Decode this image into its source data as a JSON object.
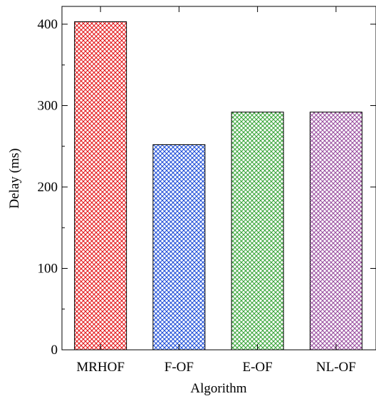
{
  "chart_data": {
    "type": "bar",
    "categories": [
      "MRHOF",
      "F-OF",
      "E-OF",
      "NL-OF"
    ],
    "values": [
      403,
      252,
      292,
      292
    ],
    "title": "",
    "xlabel": "Algorithm",
    "ylabel": "Delay (ms)",
    "ylim": [
      0,
      400
    ],
    "yticks": [
      0,
      100,
      200,
      300,
      400
    ],
    "grid": false,
    "legend": "none",
    "bar_fill": "cross-hatch",
    "colors": [
      "#e41a1c",
      "#1f4fd8",
      "#3aa63a",
      "#9a4fa0"
    ]
  }
}
